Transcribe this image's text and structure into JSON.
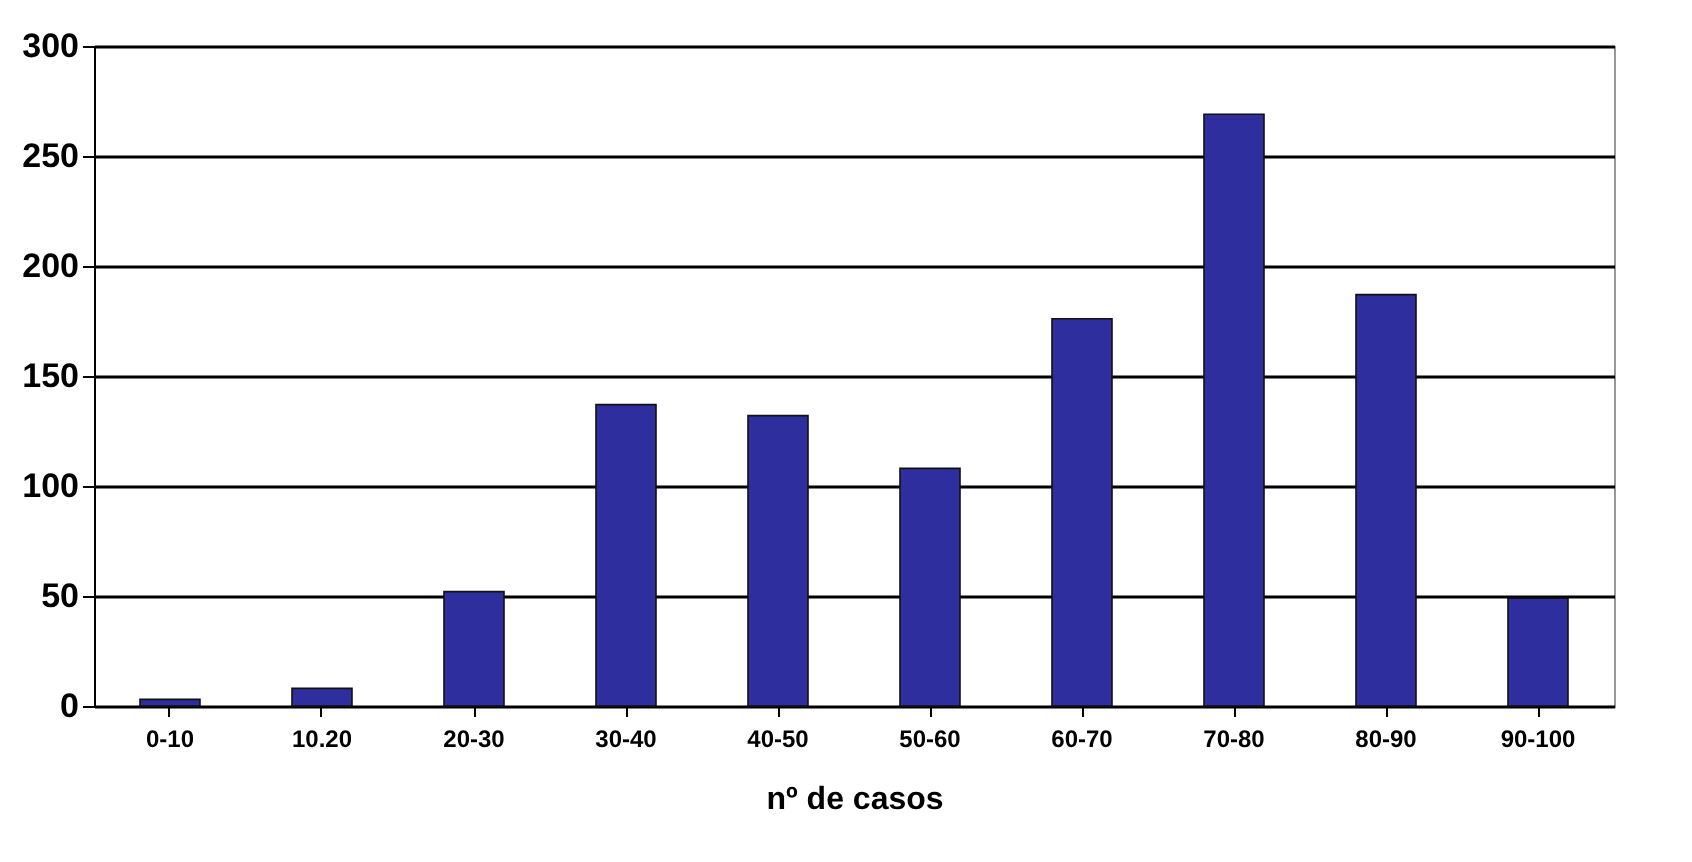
{
  "chart_data": {
    "type": "bar",
    "xlabel": "nº de casos",
    "categories": [
      "0-10",
      "10.20",
      "20-30",
      "30-40",
      "40-50",
      "50-60",
      "60-70",
      "70-80",
      "80-90",
      "90-100"
    ],
    "values": [
      3,
      8,
      52,
      137,
      132,
      108,
      176,
      269,
      187,
      49
    ],
    "color": "#2e2e9e",
    "ylim": [
      0,
      300
    ],
    "yticks": [
      0,
      50,
      100,
      150,
      200,
      250,
      300
    ],
    "grid": "y"
  }
}
